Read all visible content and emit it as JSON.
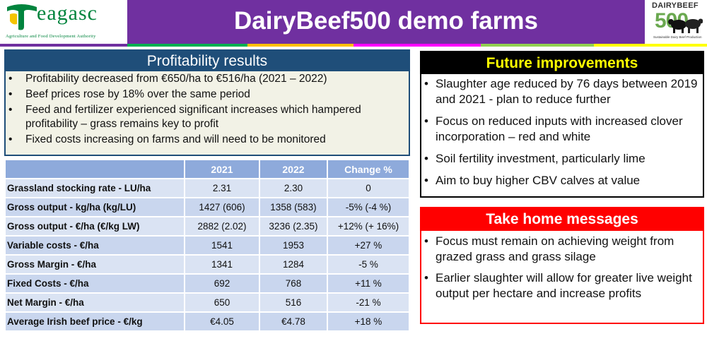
{
  "header": {
    "title": "DairyBeef500 demo farms",
    "left_logo": {
      "word": "eagasc",
      "tagline": "Agriculture and Food Development Authority"
    },
    "right_logo": {
      "word": "DAIRYBEEF",
      "number": "500",
      "subtitle": "Sustainable Dairy Beef Production"
    },
    "strip_colors": [
      "#7030a0",
      "#00b050",
      "#ffc000",
      "#ff00ff",
      "#92d050",
      "#ffff00"
    ]
  },
  "profitability": {
    "heading": "Profitability results",
    "bullets": [
      "Profitability decreased from €650/ha to €516/ha (2021 – 2022)",
      "Beef prices rose by 18% over the same period",
      "Feed and fertilizer experienced significant increases which hampered profitability – grass remains key to profit",
      "Fixed costs increasing on farms and will need to be monitored"
    ]
  },
  "table": {
    "headers": [
      "",
      "2021",
      "2022",
      "Change %"
    ],
    "rows": [
      [
        "Grassland stocking rate - LU/ha",
        "2.31",
        "2.30",
        "0"
      ],
      [
        "Gross output - kg/ha (kg/LU)",
        "1427 (606)",
        "1358 (583)",
        "-5% (-4 %)"
      ],
      [
        "Gross output  - €/ha (€/kg LW)",
        "2882 (2.02)",
        "3236 (2.35)",
        "+12% (+ 16%)"
      ],
      [
        "Variable costs - €/ha",
        "1541",
        "1953",
        "+27 %"
      ],
      [
        "Gross Margin - €/ha",
        "1341",
        "1284",
        "-5 %"
      ],
      [
        "Fixed Costs - €/ha",
        "692",
        "768",
        "+11 %"
      ],
      [
        "Net Margin - €/ha",
        "650",
        "516",
        "-21 %"
      ],
      [
        "Average Irish beef price - €/kg",
        "€4.05",
        "€4.78",
        "+18 %"
      ]
    ]
  },
  "future": {
    "heading": "Future improvements",
    "bullets": [
      "Slaughter age reduced by 76 days between 2019 and 2021 - plan to reduce further",
      "Focus on reduced inputs with increased clover incorporation – red and white",
      "Soil fertility investment, particularly lime",
      "Aim to buy higher CBV calves at value"
    ]
  },
  "home": {
    "heading": "Take home messages",
    "bullets": [
      "Focus must remain on achieving weight from grazed grass and grass silage",
      "Earlier slaughter will allow for greater live weight output per hectare and increase profits"
    ]
  },
  "bullet_glyph": "•"
}
